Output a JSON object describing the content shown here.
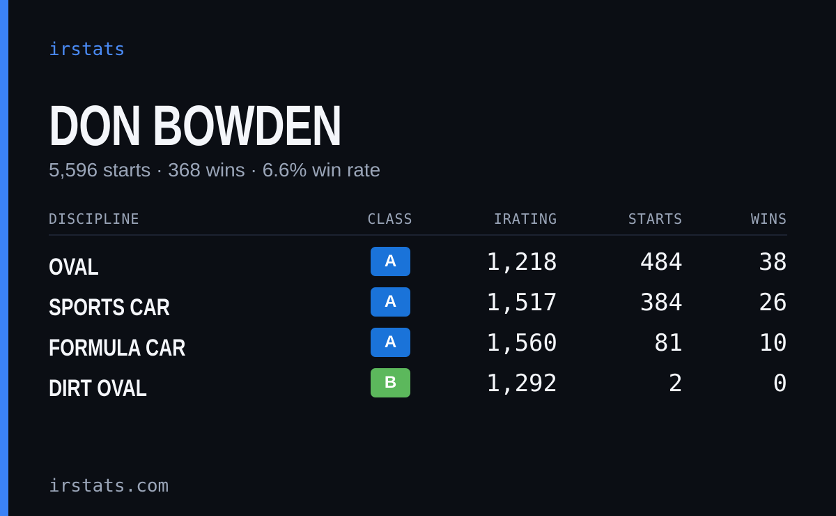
{
  "brand": "irstats",
  "profile": {
    "name": "DON BOWDEN",
    "summary": "5,596 starts · 368 wins · 6.6% win rate"
  },
  "table": {
    "headers": [
      "DISCIPLINE",
      "CLASS",
      "IRATING",
      "STARTS",
      "WINS"
    ],
    "rows": [
      {
        "discipline": "OVAL",
        "class": "A",
        "class_color": "#1a73d9",
        "irating": "1,218",
        "starts": "484",
        "wins": "38"
      },
      {
        "discipline": "SPORTS CAR",
        "class": "A",
        "class_color": "#1a73d9",
        "irating": "1,517",
        "starts": "384",
        "wins": "26"
      },
      {
        "discipline": "FORMULA CAR",
        "class": "A",
        "class_color": "#1a73d9",
        "irating": "1,560",
        "starts": "81",
        "wins": "10"
      },
      {
        "discipline": "DIRT OVAL",
        "class": "B",
        "class_color": "#5cb85c",
        "irating": "1,292",
        "starts": "2",
        "wins": "0"
      }
    ]
  },
  "footer": "irstats.com"
}
